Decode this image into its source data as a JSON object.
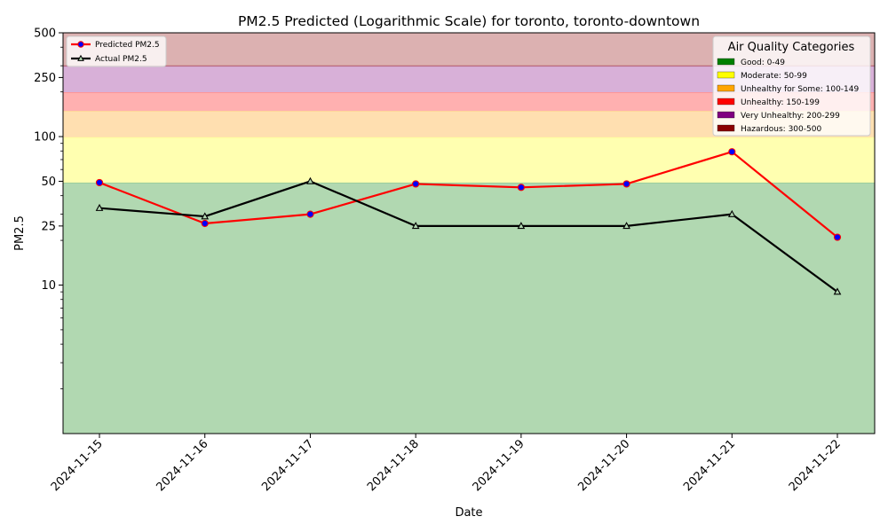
{
  "chart_data": {
    "type": "line",
    "title": "PM2.5 Predicted (Logarithmic Scale) for toronto, toronto-downtown",
    "xlabel": "Date",
    "ylabel": "PM2.5",
    "y_scale": "log",
    "ylim": [
      1,
      500
    ],
    "y_ticks": [
      10,
      25,
      50,
      100,
      250,
      500
    ],
    "y_tick_labels": [
      "10",
      "25",
      "50",
      "100",
      "250",
      "500"
    ],
    "categories": [
      "2024-11-15",
      "2024-11-16",
      "2024-11-17",
      "2024-11-18",
      "2024-11-19",
      "2024-11-20",
      "2024-11-21",
      "2024-11-22"
    ],
    "series": [
      {
        "name": "Predicted PM2.5",
        "color": "#ff0000",
        "marker_color": "#0000ff",
        "marker": "circle",
        "values": [
          49,
          26,
          30,
          48,
          45.5,
          48,
          79,
          21
        ]
      },
      {
        "name": "Actual PM2.5",
        "color": "#000000",
        "marker": "triangle",
        "values": [
          33,
          29,
          50,
          25,
          25,
          25,
          30,
          9
        ]
      }
    ],
    "bands": [
      {
        "label": "Good: 0-49",
        "from": 1,
        "to": 49,
        "fill": "#b1d8b1",
        "swatch": "#008000"
      },
      {
        "label": "Moderate: 50-99",
        "from": 49,
        "to": 99,
        "fill": "#ffffb0",
        "swatch": "#ffff00"
      },
      {
        "label": "Unhealthy for Some: 100-149",
        "from": 99,
        "to": 149,
        "fill": "#ffdfb0",
        "swatch": "#ffa500"
      },
      {
        "label": "Unhealthy: 150-199",
        "from": 149,
        "to": 199,
        "fill": "#ffb0b0",
        "swatch": "#ff0000"
      },
      {
        "label": "Very Unhealthy: 200-299",
        "from": 199,
        "to": 299,
        "fill": "#d8b0d8",
        "swatch": "#800080"
      },
      {
        "label": "Hazardous: 300-500",
        "from": 299,
        "to": 500,
        "fill": "#dcb1b1",
        "swatch": "#8b0000"
      }
    ],
    "legend_lines": {
      "position": "top-left"
    },
    "legend_categories": {
      "title": "Air Quality Categories",
      "position": "top-right"
    },
    "grid": false
  }
}
